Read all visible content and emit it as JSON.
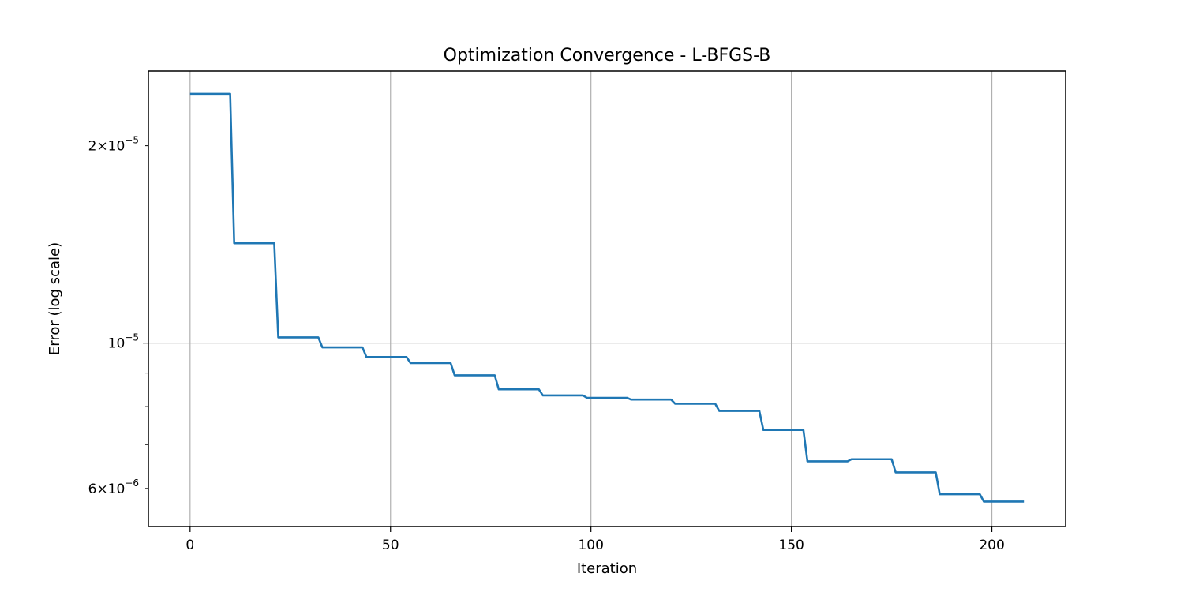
{
  "chart_data": {
    "type": "line",
    "title": "Optimization Convergence - L-BFGS-B",
    "xlabel": "Iteration",
    "ylabel": "Error (log scale)",
    "yscale": "log",
    "xlim": [
      -10.4,
      218.4
    ],
    "ylim": [
      5.25e-06,
      2.6e-05
    ],
    "grid": true,
    "line_color": "#1f77b4",
    "x_ticks": [
      {
        "value": 0,
        "label": "0"
      },
      {
        "value": 50,
        "label": "50"
      },
      {
        "value": 100,
        "label": "100"
      },
      {
        "value": 150,
        "label": "150"
      },
      {
        "value": 200,
        "label": "200"
      }
    ],
    "y_major_ticks": [
      {
        "value": 1e-05,
        "mantissa": "",
        "base": "10",
        "exponent": "−5"
      }
    ],
    "y_labeled_minor_ticks": [
      {
        "value": 6e-06,
        "mantissa": "6",
        "base": "10",
        "exponent": "−6"
      },
      {
        "value": 2e-05,
        "mantissa": "2",
        "base": "10",
        "exponent": "−5"
      }
    ],
    "y_minor_ticks": [
      7e-06,
      8e-06,
      9e-06
    ],
    "series": [
      {
        "x": [
          0,
          10,
          11,
          21,
          22,
          32,
          33,
          43,
          44,
          54,
          55,
          65,
          66,
          76,
          77,
          87,
          88,
          98,
          99,
          109,
          110,
          120,
          121,
          131,
          132,
          142,
          143,
          153,
          154,
          164,
          165,
          175,
          176,
          186,
          187,
          197,
          198,
          208
        ],
        "y": [
          2.4e-05,
          2.4e-05,
          1.42e-05,
          1.42e-05,
          1.02e-05,
          1.02e-05,
          9.85e-06,
          9.85e-06,
          9.52e-06,
          9.52e-06,
          9.32e-06,
          9.32e-06,
          8.93e-06,
          8.93e-06,
          8.5e-06,
          8.5e-06,
          8.32e-06,
          8.32e-06,
          8.25e-06,
          8.25e-06,
          8.2e-06,
          8.2e-06,
          8.08e-06,
          8.08e-06,
          7.88e-06,
          7.88e-06,
          7.37e-06,
          7.37e-06,
          6.6e-06,
          6.6e-06,
          6.65e-06,
          6.65e-06,
          6.35e-06,
          6.35e-06,
          5.88e-06,
          5.88e-06,
          5.73e-06,
          5.73e-06
        ]
      }
    ]
  }
}
